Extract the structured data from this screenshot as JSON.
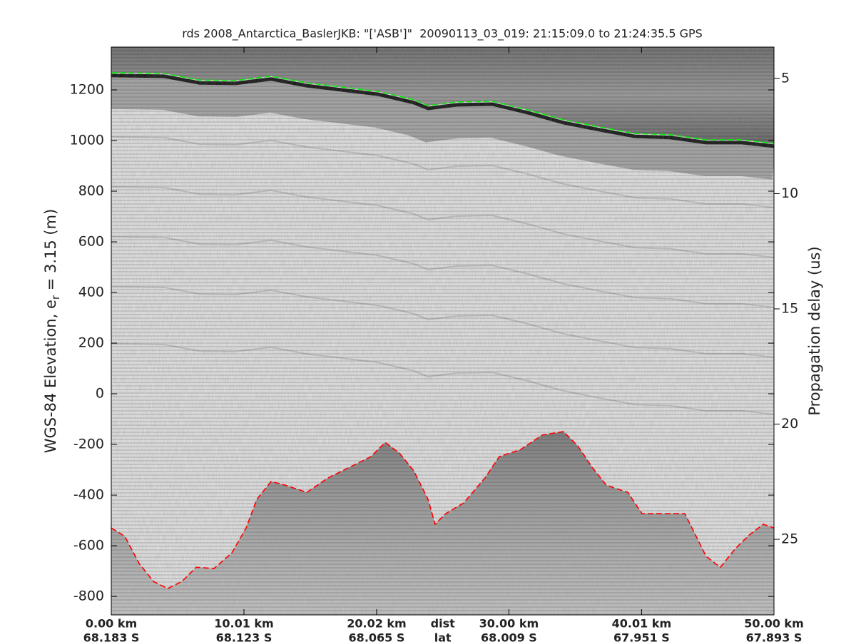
{
  "chart_data": {
    "type": "line",
    "title": "rds 2008_Antarctica_BaslerJKB: \"['ASB']\"  20090113_03_019: 21:15:09.0 to 21:24:35.5 GPS",
    "ylabel_parts": [
      "WGS-84 Elevation, e",
      "r",
      " = 3.15 (m)"
    ],
    "y2label": "Propagation delay (us)",
    "xlim": [
      0,
      50.0
    ],
    "xticks": [
      {
        "value": 0,
        "label": "0.00 km"
      },
      {
        "value": 10.01,
        "label": "10.01 km"
      },
      {
        "value": 20.02,
        "label": "20.02 km"
      },
      {
        "value": 30.0,
        "label": "30.00 km"
      },
      {
        "value": 40.01,
        "label": "40.01 km"
      },
      {
        "value": 50.0,
        "label": "50.00 km"
      }
    ],
    "xtick_lat_labels": [
      "68.183 S",
      "68.123 S",
      "68.065 S",
      "68.009 S",
      "67.951 S",
      "67.893 S"
    ],
    "x_row_labels": [
      "dist",
      "lat"
    ],
    "ylim": [
      -873,
      1369
    ],
    "yticks": [
      -800,
      -600,
      -400,
      -200,
      0,
      200,
      400,
      600,
      800,
      1000,
      1200
    ],
    "y2lim": [
      28.28,
      3.64
    ],
    "y2ticks": [
      5,
      10,
      15,
      20,
      25
    ],
    "series": [
      {
        "color": "#00ee00",
        "x": [
          0,
          3.98,
          6.67,
          9.36,
          12.06,
          14.75,
          17.44,
          20.13,
          22.82,
          23.9,
          26.05,
          28.74,
          31.43,
          34.12,
          36.81,
          39.5,
          42.19,
          44.88,
          47.57,
          50.0
        ],
        "values": [
          1268,
          1265,
          1239,
          1237,
          1254,
          1228,
          1211,
          1194,
          1161,
          1138,
          1152,
          1155,
          1121,
          1082,
          1054,
          1028,
          1023,
          1003,
          1003,
          989
        ]
      },
      {
        "color": "#ff0000",
        "x": [
          0,
          1.02,
          2.1,
          3.18,
          4.25,
          5.33,
          6.41,
          7.75,
          9.1,
          10.17,
          10.98,
          12.06,
          13.13,
          14.75,
          16.36,
          17.98,
          19.59,
          20.67,
          21.74,
          22.82,
          23.9,
          24.43,
          25.24,
          26.59,
          28.2,
          29.28,
          30.89,
          32.51,
          34.12,
          35.2,
          36.28,
          37.35,
          38.97,
          40.04,
          41.66,
          43.27,
          44.88,
          45.96,
          47.04,
          48.12,
          49.19,
          50.0
        ],
        "values": [
          -530,
          -563,
          -670,
          -741,
          -769,
          -741,
          -685,
          -690,
          -628,
          -530,
          -417,
          -346,
          -361,
          -389,
          -332,
          -290,
          -248,
          -192,
          -234,
          -304,
          -417,
          -515,
          -473,
          -431,
          -332,
          -248,
          -220,
          -163,
          -149,
          -206,
          -290,
          -361,
          -389,
          -473,
          -473,
          -473,
          -642,
          -685,
          -614,
          -558,
          -515,
          -530
        ]
      }
    ]
  }
}
